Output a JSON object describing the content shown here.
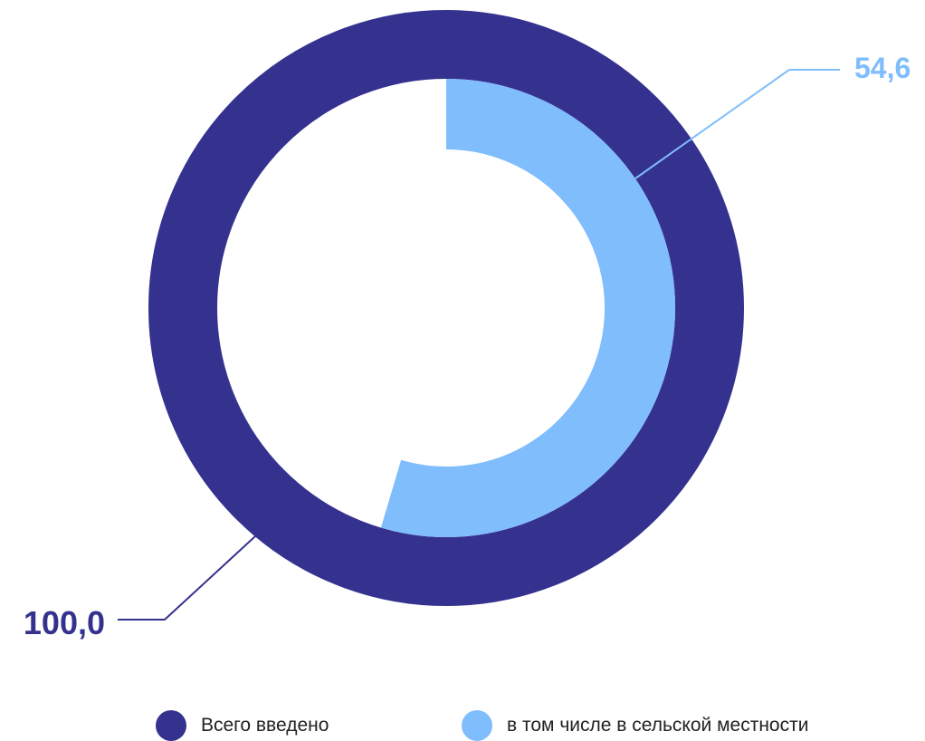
{
  "chart_data": {
    "type": "pie",
    "variant": "nested-donut",
    "series": [
      {
        "name": "Всего введено",
        "value": 100.0,
        "label": "100,0",
        "color": "#35318f"
      },
      {
        "name": "в том числе в сельской местности",
        "value": 54.6,
        "label": "54,6",
        "color": "#80bdfc"
      }
    ],
    "value_max": 100,
    "legend_position": "bottom"
  }
}
